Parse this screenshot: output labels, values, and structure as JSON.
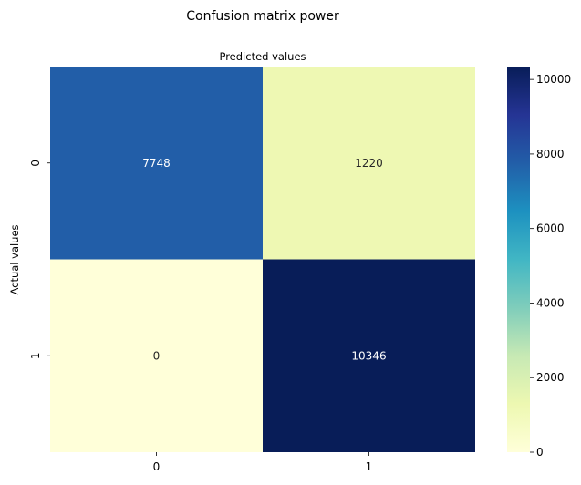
{
  "chart_data": {
    "type": "heatmap",
    "title": "Confusion matrix power",
    "xlabel": "Predicted values",
    "ylabel": "Actual values",
    "x_categories": [
      "0",
      "1"
    ],
    "y_categories": [
      "0",
      "1"
    ],
    "values": [
      [
        7748,
        1220
      ],
      [
        0,
        10346
      ]
    ],
    "cell_labels": [
      [
        "7748",
        "1220"
      ],
      [
        "0",
        "10346"
      ]
    ],
    "colormap": "YlGnBu",
    "vmin": 0,
    "vmax": 10346,
    "colorbar_ticks": [
      0,
      2000,
      4000,
      6000,
      8000,
      10000
    ],
    "colorbar_tick_labels": [
      "0",
      "2000",
      "4000",
      "6000",
      "8000",
      "10000"
    ],
    "xlabel_position": "top"
  }
}
